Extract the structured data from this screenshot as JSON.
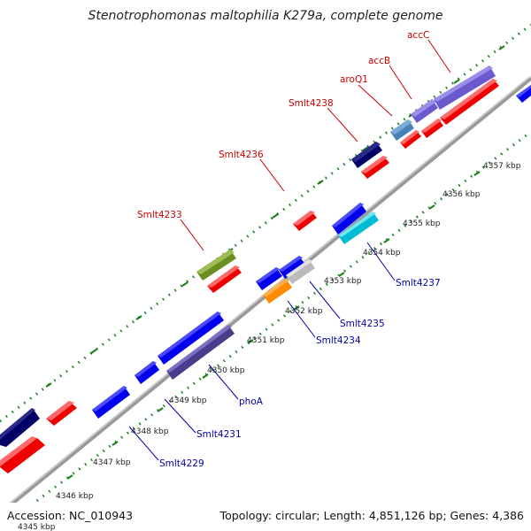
{
  "title": "Stenotrophomonas maltophilia K279a, complete genome",
  "footer": {
    "accession": "Accession: NC_010943",
    "summary": "Topology: circular; Length: 4,851,126 bp; Genes: 4,386"
  },
  "colors": {
    "plus_label": "#cc0000",
    "minus_label": "#0000aa",
    "backbone": "#999999",
    "ticks": "#1a7f1a"
  },
  "kbp_labels": [
    "4345 kbp",
    "4346 kbp",
    "4347 kbp",
    "4348 kbp",
    "4349 kbp",
    "4350 kbp",
    "4351 kbp",
    "4352 kbp",
    "4353 kbp",
    "4354 kbp",
    "4355 kbp",
    "4356 kbp",
    "4357 kbp"
  ],
  "gene_labels": [
    "accC",
    "accB",
    "aroQ1",
    "Smlt4238",
    "Smlt4236",
    "Smlt4233",
    "Smlt4237",
    "Smlt4235",
    "Smlt4234",
    "phoA",
    "Smlt4231",
    "Smlt4229"
  ]
}
